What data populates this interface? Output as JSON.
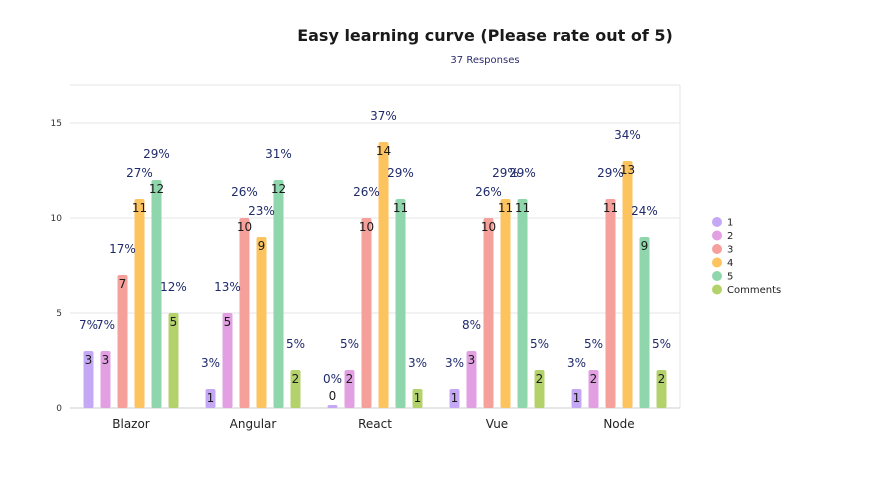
{
  "chart_data": {
    "type": "bar",
    "title": "Easy learning curve (Please rate out of 5)",
    "subtitle": "37 Responses",
    "categories": [
      "Blazor",
      "Angular",
      "React",
      "Vue",
      "Node"
    ],
    "ylim": [
      0,
      17
    ],
    "yticks": [
      0,
      5,
      10,
      15
    ],
    "grid": true,
    "legend_position": "right",
    "series": [
      {
        "name": "1",
        "color": "#c5a8f5",
        "values": [
          3,
          1,
          0,
          1,
          1
        ],
        "percents": [
          "7%",
          "3%",
          "0%",
          "3%",
          "3%"
        ]
      },
      {
        "name": "2",
        "color": "#e2a0e3",
        "values": [
          3,
          5,
          2,
          3,
          2
        ],
        "percents": [
          "7%",
          "13%",
          "5%",
          "8%",
          "5%"
        ]
      },
      {
        "name": "3",
        "color": "#f5a09b",
        "values": [
          7,
          10,
          10,
          10,
          11
        ],
        "percents": [
          "17%",
          "26%",
          "26%",
          "26%",
          "29%"
        ]
      },
      {
        "name": "4",
        "color": "#fcc35e",
        "values": [
          11,
          9,
          14,
          11,
          13
        ],
        "percents": [
          "27%",
          "23%",
          "37%",
          "29%",
          "34%"
        ]
      },
      {
        "name": "5",
        "color": "#8fd6ad",
        "values": [
          12,
          12,
          11,
          11,
          9
        ],
        "percents": [
          "29%",
          "31%",
          "29%",
          "29%",
          "24%"
        ]
      },
      {
        "name": "Comments",
        "color": "#b3d26b",
        "values": [
          5,
          2,
          1,
          2,
          2
        ],
        "percents": [
          "12%",
          "5%",
          "3%",
          "5%",
          "5%"
        ]
      }
    ]
  }
}
